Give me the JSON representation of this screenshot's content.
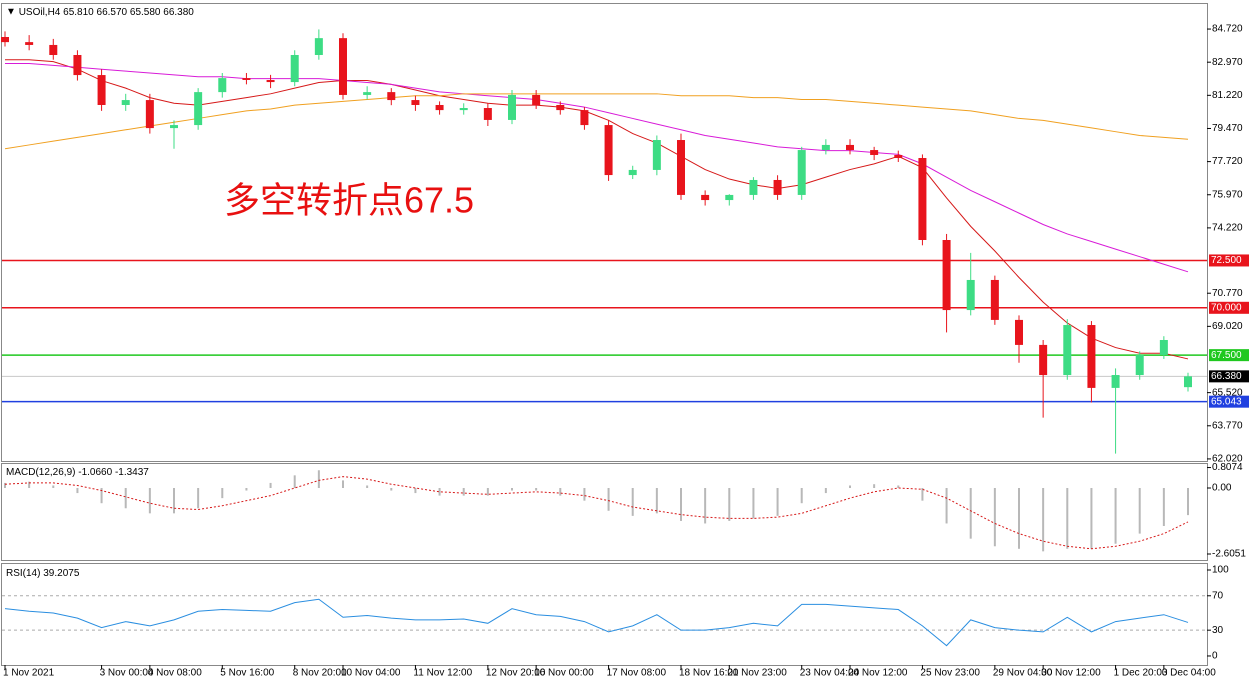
{
  "chart_data": [
    {
      "type": "candlestick",
      "title": "USOil,H4",
      "header": [
        "65.810",
        "66.570",
        "65.580",
        "66.380"
      ],
      "annotation": "多空转折点67.5",
      "categories": [
        "1 Nov 2021",
        null,
        null,
        null,
        "3 Nov 00:00",
        null,
        "4 Nov 08:00",
        null,
        null,
        "5 Nov 16:00",
        null,
        null,
        "8 Nov 20:00",
        null,
        "10 Nov 04:00",
        null,
        null,
        "11 Nov 12:00",
        null,
        null,
        "12 Nov 20:00",
        null,
        "16 Nov 00:00",
        null,
        null,
        "17 Nov 08:00",
        null,
        null,
        "18 Nov 16:00",
        null,
        "21 Nov 23:00",
        null,
        null,
        "23 Nov 04:00",
        null,
        "24 Nov 12:00",
        null,
        null,
        "25 Nov 23:00",
        null,
        null,
        "29 Nov 04:00",
        null,
        "30 Nov 12:00",
        null,
        null,
        "1 Dec 20:00",
        null,
        "3 Dec 04:00",
        null
      ],
      "open": [
        84.3,
        84.03,
        83.88,
        83.35,
        82.29,
        80.71,
        80.97,
        79.49,
        79.65,
        81.39,
        82.13,
        82.03,
        81.92,
        83.35,
        84.24,
        81.24,
        81.39,
        80.97,
        80.71,
        80.44,
        80.55,
        79.92,
        81.24,
        80.71,
        80.44,
        79.65,
        77.01,
        77.28,
        78.86,
        75.96,
        75.69,
        75.96,
        76.75,
        75.96,
        78.33,
        78.6,
        78.33,
        78.07,
        77.91,
        73.58,
        69.88,
        71.47,
        69.36,
        68.04,
        66.45,
        69.09,
        65.77,
        66.45,
        67.51,
        65.81
      ],
      "high": [
        84.6,
        84.4,
        84.2,
        83.6,
        82.6,
        81.3,
        81.3,
        79.9,
        81.6,
        82.4,
        82.4,
        82.3,
        83.6,
        84.7,
        84.5,
        81.7,
        81.6,
        81.2,
        80.9,
        80.8,
        80.8,
        81.5,
        81.5,
        80.9,
        80.6,
        79.9,
        77.5,
        79.1,
        79.2,
        76.2,
        76.0,
        76.9,
        77.0,
        78.5,
        78.9,
        78.9,
        78.5,
        78.3,
        78.1,
        73.9,
        72.9,
        71.7,
        69.6,
        68.3,
        69.4,
        69.3,
        66.8,
        67.7,
        68.5,
        66.57
      ],
      "low": [
        83.8,
        83.6,
        83.1,
        82.0,
        80.4,
        80.4,
        79.2,
        78.4,
        79.4,
        81.1,
        81.8,
        81.6,
        81.7,
        83.1,
        81.0,
        81.0,
        80.7,
        80.4,
        80.2,
        80.2,
        79.6,
        79.7,
        80.5,
        80.2,
        79.4,
        76.7,
        76.8,
        77.0,
        75.7,
        75.4,
        75.4,
        75.7,
        75.7,
        75.7,
        78.1,
        78.1,
        77.8,
        77.7,
        73.3,
        68.7,
        69.6,
        69.1,
        67.1,
        64.2,
        66.2,
        65.0,
        62.3,
        66.2,
        67.3,
        65.58
      ],
      "close": [
        84.03,
        83.88,
        83.35,
        82.29,
        80.71,
        80.97,
        79.49,
        79.65,
        81.39,
        82.13,
        82.03,
        81.92,
        83.35,
        84.24,
        81.24,
        81.39,
        80.97,
        80.71,
        80.44,
        80.55,
        79.92,
        81.24,
        80.71,
        80.44,
        79.65,
        77.01,
        77.28,
        78.86,
        75.96,
        75.69,
        75.96,
        76.75,
        75.96,
        78.33,
        78.6,
        78.33,
        78.07,
        77.91,
        73.58,
        69.88,
        71.47,
        69.36,
        68.04,
        66.45,
        69.09,
        65.77,
        66.45,
        67.51,
        68.3,
        66.38
      ],
      "up_color": "#3ddc84",
      "down_color": "#e8141c",
      "series": [
        {
          "color": "#d61818",
          "values": [
            83.1,
            83.1,
            83.0,
            82.6,
            82.0,
            81.6,
            81.1,
            80.8,
            80.7,
            80.9,
            81.1,
            81.3,
            81.6,
            81.9,
            82.0,
            82.0,
            81.8,
            81.5,
            81.2,
            81.0,
            80.8,
            80.7,
            80.7,
            80.6,
            80.4,
            79.9,
            79.2,
            78.7,
            78.0,
            77.3,
            76.8,
            76.5,
            76.3,
            76.5,
            76.9,
            77.3,
            77.6,
            78.0,
            77.4,
            75.8,
            74.3,
            73.0,
            71.6,
            70.3,
            69.2,
            68.4,
            67.9,
            67.6,
            67.6,
            67.3
          ]
        },
        {
          "color": "#d81bd8",
          "values": [
            82.9,
            82.9,
            82.8,
            82.7,
            82.6,
            82.5,
            82.4,
            82.3,
            82.2,
            82.2,
            82.1,
            82.1,
            82.1,
            82.1,
            82.0,
            81.9,
            81.8,
            81.6,
            81.4,
            81.3,
            81.2,
            81.1,
            81.0,
            80.8,
            80.6,
            80.3,
            80.0,
            79.7,
            79.4,
            79.1,
            78.9,
            78.7,
            78.5,
            78.4,
            78.3,
            78.3,
            78.2,
            78.1,
            77.6,
            76.9,
            76.2,
            75.6,
            75.0,
            74.4,
            73.9,
            73.5,
            73.1,
            72.7,
            72.3,
            71.9
          ]
        },
        {
          "color": "#f0a020",
          "values": [
            78.4,
            78.6,
            78.8,
            79.0,
            79.2,
            79.4,
            79.6,
            79.8,
            80.0,
            80.2,
            80.4,
            80.5,
            80.7,
            80.8,
            80.9,
            81.0,
            81.1,
            81.2,
            81.2,
            81.3,
            81.3,
            81.3,
            81.3,
            81.3,
            81.3,
            81.3,
            81.3,
            81.3,
            81.2,
            81.2,
            81.2,
            81.1,
            81.1,
            81.0,
            81.0,
            80.9,
            80.8,
            80.7,
            80.6,
            80.5,
            80.4,
            80.2,
            80.0,
            79.9,
            79.7,
            79.5,
            79.3,
            79.1,
            79.0,
            78.9
          ]
        }
      ],
      "levels": [
        {
          "value": 72.5,
          "label": "72.500",
          "color": "#e8141c",
          "box": "#e8141c"
        },
        {
          "value": 70.0,
          "label": "70.000",
          "color": "#e8141c",
          "box": "#e8141c"
        },
        {
          "value": 67.5,
          "label": "67.500",
          "color": "#1fc81f",
          "box": "#1fc81f"
        },
        {
          "value": 66.38,
          "label": "66.380",
          "color": "#c8c8c8",
          "box": "#000000"
        },
        {
          "value": 65.043,
          "label": "65.043",
          "color": "#2040e0",
          "box": "#2040e0"
        }
      ],
      "ylim": [
        61.91,
        85.99
      ],
      "yticks": [
        {
          "value": 84.72,
          "label": "84.720"
        },
        {
          "value": 82.97,
          "label": "82.970"
        },
        {
          "value": 81.22,
          "label": "81.220"
        },
        {
          "value": 79.47,
          "label": "79.470"
        },
        {
          "value": 77.72,
          "label": "77.720"
        },
        {
          "value": 75.97,
          "label": "75.970"
        },
        {
          "value": 74.22,
          "label": "74.220"
        },
        {
          "value": 70.77,
          "label": "70.770"
        },
        {
          "value": 69.02,
          "label": "69.020"
        },
        {
          "value": 65.52,
          "label": "65.520"
        },
        {
          "value": 63.77,
          "label": "63.770"
        },
        {
          "value": 62.02,
          "label": "62.020"
        }
      ]
    },
    {
      "type": "macd",
      "title": "MACD(12,26,9)",
      "header": [
        "-1.0660",
        "-1.3437"
      ],
      "histogram": [
        0.2,
        0.25,
        0.1,
        -0.2,
        -0.6,
        -0.8,
        -1.0,
        -1.0,
        -0.8,
        -0.4,
        -0.1,
        0.2,
        0.5,
        0.7,
        0.3,
        0.1,
        -0.1,
        -0.2,
        -0.3,
        -0.3,
        -0.3,
        -0.1,
        -0.1,
        -0.3,
        -0.5,
        -0.9,
        -1.1,
        -1.0,
        -1.3,
        -1.4,
        -1.3,
        -1.2,
        -1.1,
        -0.6,
        -0.2,
        0.1,
        0.15,
        0.1,
        -0.5,
        -1.4,
        -2.0,
        -2.3,
        -2.4,
        -2.5,
        -2.4,
        -2.4,
        -2.2,
        -1.8,
        -1.5,
        -1.07
      ],
      "signal": [
        0.15,
        0.2,
        0.2,
        0.1,
        -0.1,
        -0.35,
        -0.6,
        -0.8,
        -0.85,
        -0.7,
        -0.5,
        -0.3,
        0.0,
        0.3,
        0.45,
        0.35,
        0.15,
        0.0,
        -0.15,
        -0.2,
        -0.25,
        -0.2,
        -0.15,
        -0.2,
        -0.3,
        -0.5,
        -0.75,
        -0.9,
        -1.05,
        -1.15,
        -1.2,
        -1.2,
        -1.15,
        -1.0,
        -0.7,
        -0.4,
        -0.15,
        0.0,
        -0.05,
        -0.4,
        -0.9,
        -1.4,
        -1.8,
        -2.1,
        -2.3,
        -2.4,
        -2.3,
        -2.1,
        -1.8,
        -1.34
      ],
      "histogram_color": "#b8b8b8",
      "signal_color": "#d61818",
      "ylim": [
        -2.842,
        0.908
      ],
      "yticks": [
        0.8074,
        {
          "value": 0,
          "label": "0.00"
        },
        -2.6051
      ]
    },
    {
      "type": "rsi",
      "title": "RSI(14)",
      "header": [
        "39.2075"
      ],
      "values": [
        55,
        52,
        50,
        44,
        33,
        40,
        35,
        42,
        52,
        54,
        53,
        52,
        62,
        66,
        45,
        47,
        44,
        42,
        42,
        43,
        38,
        55,
        48,
        46,
        40,
        28,
        35,
        48,
        30,
        30,
        33,
        38,
        35,
        60,
        60,
        58,
        56,
        54,
        35,
        12,
        42,
        33,
        30,
        28,
        45,
        28,
        40,
        44,
        48,
        39
      ],
      "color": "#2a8ee0",
      "levels": [
        70,
        30
      ],
      "ylim": [
        -10.5,
        105.8
      ],
      "yticks": [
        100,
        70,
        30,
        0
      ]
    }
  ]
}
